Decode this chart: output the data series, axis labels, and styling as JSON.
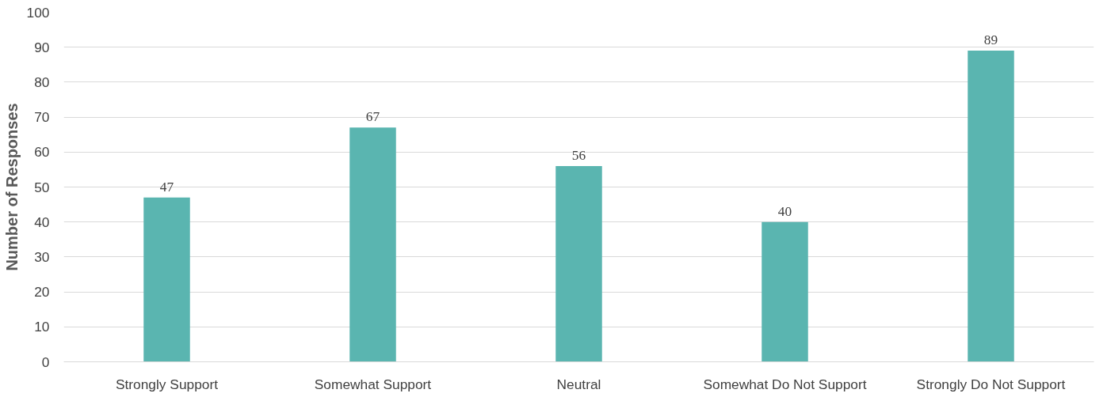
{
  "chart_data": {
    "type": "bar",
    "ylabel": "Number of Responses",
    "categories": [
      "Strongly Support",
      "Somewhat Support",
      "Neutral",
      "Somewhat Do Not Support",
      "Strongly Do Not Support"
    ],
    "values": [
      47,
      67,
      56,
      40,
      89
    ],
    "color": "#5ab5b0",
    "ylim": [
      0,
      100
    ],
    "yticks": [
      0,
      10,
      20,
      30,
      40,
      50,
      60,
      70,
      80,
      90,
      100
    ],
    "grid": "y",
    "data_labels": true
  }
}
